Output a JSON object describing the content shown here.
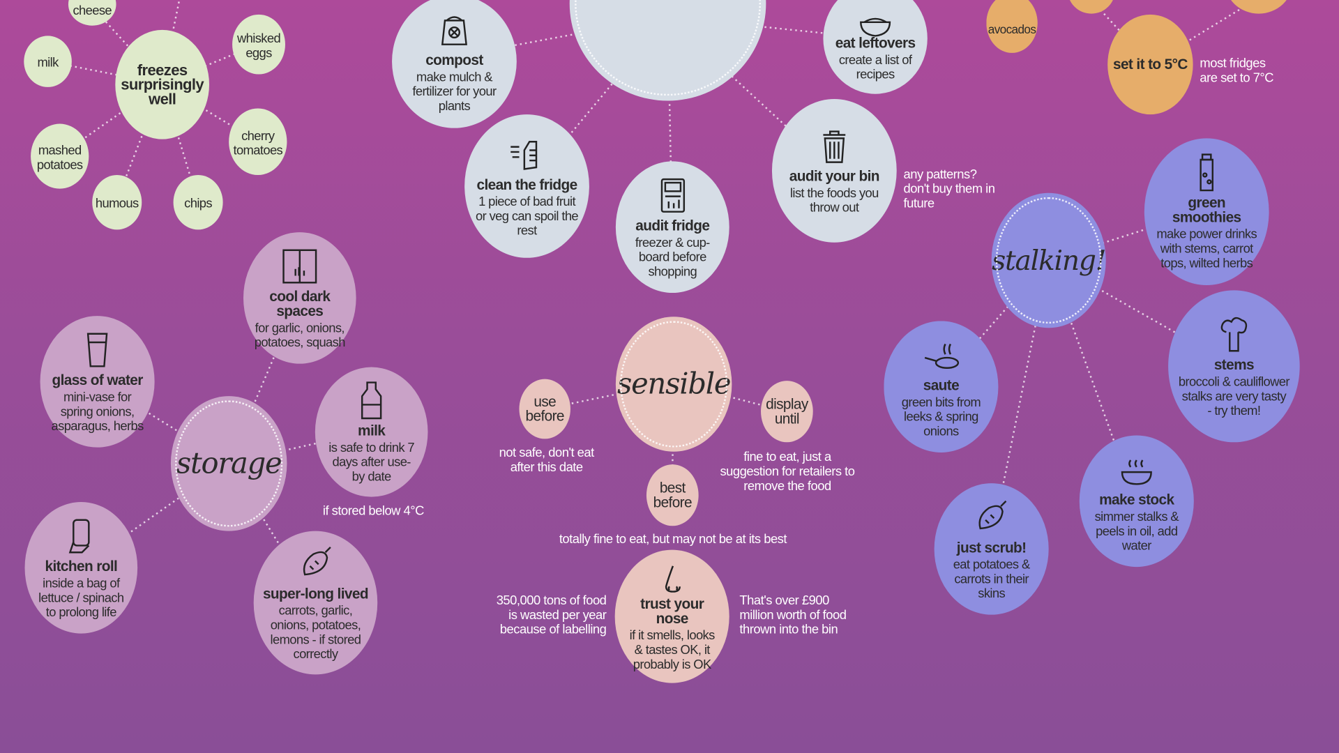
{
  "freeze": {
    "hub": "freezes surprisingly well",
    "items": [
      "cheese",
      "milk",
      "whisked eggs",
      "mashed potatoes",
      "cherry tomatoes",
      "humous",
      "chips"
    ]
  },
  "waste": {
    "compost": {
      "title": "compost",
      "text": "make mulch & fertilizer for your plants"
    },
    "eat_leftovers": {
      "title": "eat leftovers",
      "text": "create a list of recipes"
    },
    "clean_fridge": {
      "title": "clean the fridge",
      "text": "1 piece of bad fruit or veg can spoil the rest"
    },
    "audit_fridge": {
      "title": "audit fridge",
      "text": "freezer & cup-board before shopping"
    },
    "audit_bin": {
      "title": "audit your bin",
      "text": "list the foods you throw out"
    },
    "audit_bin_note": "any patterns? don't buy them in future"
  },
  "fridge_temp": {
    "avocados": "avocados",
    "set": "set it to 5°C",
    "note": "most fridges are set to 7°C"
  },
  "storage": {
    "hub": "storage",
    "cool_dark": {
      "title": "cool dark spaces",
      "text": "for garlic, onions, potatoes, squash"
    },
    "glass_water": {
      "title": "glass of water",
      "text": "mini-vase for spring onions, asparagus, herbs"
    },
    "milk": {
      "title": "milk",
      "text": "is safe to drink 7 days after use-by date"
    },
    "milk_note": "if stored below 4°C",
    "kitchen_roll": {
      "title": "kitchen roll",
      "text": "inside a bag of lettuce / spinach to prolong life"
    },
    "super_long": {
      "title": "super-long lived",
      "text": "carrots, garlic, onions, potatoes, lemons - if stored correctly"
    }
  },
  "sensible": {
    "hub": "sensible",
    "use_before": "use before",
    "use_before_note": "not safe, don't eat after this date",
    "display_until": "display until",
    "display_until_note": "fine to eat, just a suggestion for retailers to remove the food",
    "best_before": "best before",
    "best_before_note": "totally fine to eat, but may not be at its best",
    "trust_nose": {
      "title": "trust your nose",
      "text": "if it smells, looks & tastes OK, it probably is OK"
    },
    "left_note": "350,000 tons of food is wasted per year because of labelling",
    "right_note": "That's over £900 million worth of food thrown into the bin"
  },
  "stalking": {
    "hub": "stalking!",
    "smoothies": {
      "title": "green smoothies",
      "text": "make power drinks with stems, carrot tops, wilted herbs"
    },
    "stems": {
      "title": "stems",
      "text": "broccoli & cauliflower stalks are very tasty - try them!"
    },
    "saute": {
      "title": "saute",
      "text": "green bits from leeks & spring onions"
    },
    "stock": {
      "title": "make stock",
      "text": "simmer stalks & peels in oil, add water"
    },
    "scrub": {
      "title": "just scrub!",
      "text": "eat potatoes & carrots in their skins"
    }
  },
  "colors": {
    "green": "#dfeacb",
    "blue": "#d6dde6",
    "orange": "#e6ad6a",
    "mauve": "#c9a2c7",
    "pink": "#e9c5bf",
    "violet": "#8e8ee0"
  }
}
